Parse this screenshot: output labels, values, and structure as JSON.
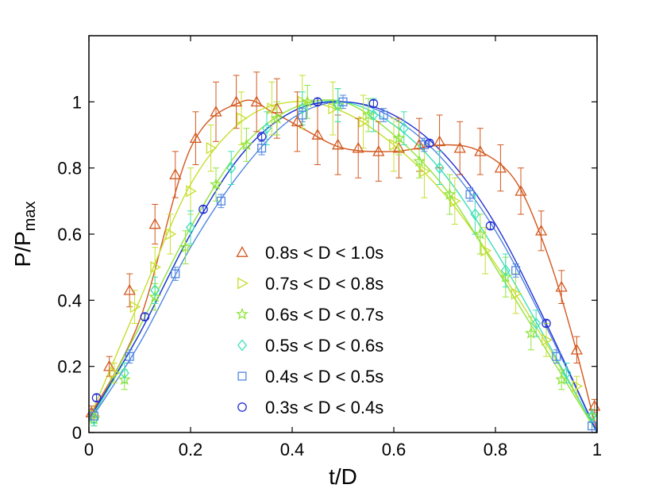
{
  "chart_data": {
    "type": "line",
    "title": "",
    "xlabel": "t/D",
    "ylabel_main": "P/P",
    "ylabel_sub": "max",
    "xlim": [
      0,
      1
    ],
    "ylim": [
      0,
      1.2
    ],
    "xticks": [
      0,
      0.2,
      0.4,
      0.6,
      0.8,
      1
    ],
    "xtick_labels": [
      "0",
      "0.2",
      "0.4",
      "0.6",
      "0.8",
      "1"
    ],
    "yticks": [
      0,
      0.2,
      0.4,
      0.6,
      0.8,
      1
    ],
    "ytick_labels": [
      "0",
      "0.2",
      "0.4",
      "0.6",
      "0.8",
      "1"
    ],
    "grid": false,
    "legend_position": "center",
    "series": [
      {
        "name": "0.8s < D < 1.0s",
        "marker": "triangle-up",
        "color": "#d2581e",
        "points": [
          [
            0.005,
            0.06,
            0.02
          ],
          [
            0.04,
            0.2,
            0.03
          ],
          [
            0.08,
            0.43,
            0.05
          ],
          [
            0.13,
            0.63,
            0.06
          ],
          [
            0.17,
            0.78,
            0.07
          ],
          [
            0.21,
            0.89,
            0.08
          ],
          [
            0.25,
            0.97,
            0.09
          ],
          [
            0.29,
            1.0,
            0.08
          ],
          [
            0.33,
            1.0,
            0.09
          ],
          [
            0.37,
            0.98,
            0.09
          ],
          [
            0.41,
            0.94,
            0.09
          ],
          [
            0.45,
            0.9,
            0.09
          ],
          [
            0.49,
            0.87,
            0.09
          ],
          [
            0.53,
            0.86,
            0.09
          ],
          [
            0.57,
            0.85,
            0.09
          ],
          [
            0.61,
            0.86,
            0.09
          ],
          [
            0.65,
            0.87,
            0.08
          ],
          [
            0.69,
            0.88,
            0.08
          ],
          [
            0.73,
            0.86,
            0.08
          ],
          [
            0.77,
            0.85,
            0.07
          ],
          [
            0.81,
            0.8,
            0.07
          ],
          [
            0.85,
            0.73,
            0.07
          ],
          [
            0.89,
            0.61,
            0.06
          ],
          [
            0.93,
            0.44,
            0.05
          ],
          [
            0.96,
            0.25,
            0.04
          ],
          [
            0.995,
            0.08,
            0.02
          ]
        ],
        "curve": [
          0.002,
          0.05,
          0.1,
          0.34,
          0.2,
          0.86,
          0.3,
          1.0,
          0.36,
          0.97,
          0.42,
          0.92,
          0.5,
          0.86,
          0.6,
          0.85,
          0.7,
          0.87,
          0.77,
          0.85,
          0.84,
          0.76,
          0.9,
          0.55,
          0.95,
          0.3,
          1.0,
          0.0
        ]
      },
      {
        "name": "0.7s < D < 0.8s",
        "marker": "triangle-right",
        "color": "#c8de2e",
        "points": [
          [
            0.01,
            0.05,
            0.02
          ],
          [
            0.05,
            0.18,
            0.03
          ],
          [
            0.09,
            0.38,
            0.05
          ],
          [
            0.13,
            0.5,
            0.06
          ],
          [
            0.16,
            0.6,
            0.06
          ],
          [
            0.2,
            0.73,
            0.07
          ],
          [
            0.24,
            0.86,
            0.07
          ],
          [
            0.3,
            0.95,
            0.08
          ],
          [
            0.36,
            0.98,
            0.08
          ],
          [
            0.42,
            1.0,
            0.08
          ],
          [
            0.48,
            0.98,
            0.08
          ],
          [
            0.54,
            0.94,
            0.08
          ],
          [
            0.6,
            0.87,
            0.08
          ],
          [
            0.66,
            0.79,
            0.08
          ],
          [
            0.72,
            0.7,
            0.07
          ],
          [
            0.78,
            0.55,
            0.07
          ],
          [
            0.84,
            0.42,
            0.06
          ],
          [
            0.9,
            0.28,
            0.05
          ],
          [
            0.96,
            0.14,
            0.03
          ]
        ],
        "curve": [
          0.0,
          0.04,
          0.1,
          0.4,
          0.2,
          0.75,
          0.3,
          0.94,
          0.4,
          1.0,
          0.5,
          0.97,
          0.6,
          0.87,
          0.7,
          0.72,
          0.8,
          0.51,
          0.9,
          0.27,
          1.0,
          0.0
        ]
      },
      {
        "name": "0.6s < D < 0.7s",
        "marker": "star",
        "color": "#8ee43a",
        "points": [
          [
            0.01,
            0.04,
            0.02
          ],
          [
            0.07,
            0.16,
            0.03
          ],
          [
            0.13,
            0.41,
            0.04
          ],
          [
            0.19,
            0.56,
            0.05
          ],
          [
            0.25,
            0.75,
            0.05
          ],
          [
            0.31,
            0.87,
            0.05
          ],
          [
            0.37,
            0.95,
            0.05
          ],
          [
            0.43,
            1.0,
            0.05
          ],
          [
            0.49,
            0.99,
            0.05
          ],
          [
            0.55,
            0.96,
            0.05
          ],
          [
            0.61,
            0.89,
            0.05
          ],
          [
            0.65,
            0.82,
            0.05
          ],
          [
            0.71,
            0.72,
            0.06
          ],
          [
            0.77,
            0.6,
            0.06
          ],
          [
            0.82,
            0.47,
            0.06
          ],
          [
            0.87,
            0.3,
            0.05
          ],
          [
            0.93,
            0.16,
            0.03
          ],
          [
            0.99,
            0.05,
            0.02
          ]
        ],
        "curve": [
          0.0,
          0.03,
          0.1,
          0.32,
          0.2,
          0.62,
          0.3,
          0.86,
          0.4,
          0.98,
          0.5,
          1.0,
          0.6,
          0.9,
          0.7,
          0.74,
          0.8,
          0.5,
          0.9,
          0.25,
          1.0,
          0.0
        ]
      },
      {
        "name": "0.5s < D < 0.6s",
        "marker": "diamond",
        "color": "#3de0b8",
        "points": [
          [
            0.01,
            0.04,
            0.02
          ],
          [
            0.07,
            0.18,
            0.03
          ],
          [
            0.13,
            0.43,
            0.04
          ],
          [
            0.2,
            0.62,
            0.05
          ],
          [
            0.28,
            0.8,
            0.05
          ],
          [
            0.35,
            0.92,
            0.05
          ],
          [
            0.42,
            0.98,
            0.05
          ],
          [
            0.49,
            0.99,
            0.05
          ],
          [
            0.56,
            0.96,
            0.05
          ],
          [
            0.62,
            0.92,
            0.05
          ],
          [
            0.69,
            0.8,
            0.05
          ],
          [
            0.76,
            0.66,
            0.06
          ],
          [
            0.82,
            0.49,
            0.05
          ],
          [
            0.88,
            0.33,
            0.04
          ],
          [
            0.94,
            0.18,
            0.03
          ],
          [
            0.99,
            0.05,
            0.02
          ]
        ],
        "curve": [
          0.0,
          0.03,
          0.1,
          0.3,
          0.2,
          0.6,
          0.3,
          0.84,
          0.4,
          0.97,
          0.5,
          1.0,
          0.6,
          0.93,
          0.7,
          0.78,
          0.8,
          0.55,
          0.9,
          0.28,
          1.0,
          0.0
        ]
      },
      {
        "name": "0.4s < D < 0.5s",
        "marker": "square",
        "color": "#4f86e0",
        "points": [
          [
            0.01,
            0.05,
            0.02
          ],
          [
            0.08,
            0.23,
            0.02
          ],
          [
            0.17,
            0.48,
            0.02
          ],
          [
            0.26,
            0.7,
            0.02
          ],
          [
            0.34,
            0.86,
            0.02
          ],
          [
            0.42,
            0.96,
            0.02
          ],
          [
            0.5,
            1.0,
            0.02
          ],
          [
            0.58,
            0.96,
            0.02
          ],
          [
            0.66,
            0.87,
            0.02
          ],
          [
            0.75,
            0.72,
            0.02
          ],
          [
            0.84,
            0.49,
            0.02
          ],
          [
            0.92,
            0.23,
            0.02
          ],
          [
            0.99,
            0.02,
            0.02
          ]
        ],
        "curve": [
          0.0,
          0.03,
          0.1,
          0.27,
          0.2,
          0.56,
          0.3,
          0.79,
          0.4,
          0.95,
          0.5,
          1.0,
          0.6,
          0.95,
          0.7,
          0.82,
          0.8,
          0.61,
          0.9,
          0.32,
          1.0,
          0.0
        ]
      },
      {
        "name": "0.3s < D < 0.4s",
        "marker": "circle",
        "color": "#2631d4",
        "points": [
          [
            0.015,
            0.105,
            0.01
          ],
          [
            0.11,
            0.35,
            0.01
          ],
          [
            0.225,
            0.675,
            0.01
          ],
          [
            0.34,
            0.895,
            0.01
          ],
          [
            0.45,
            1.0,
            0.01
          ],
          [
            0.56,
            0.995,
            0.01
          ],
          [
            0.67,
            0.875,
            0.01
          ],
          [
            0.79,
            0.625,
            0.01
          ],
          [
            0.9,
            0.33,
            0.01
          ]
        ],
        "curve": [
          0.0,
          0.04,
          0.1,
          0.3,
          0.2,
          0.6,
          0.3,
          0.84,
          0.4,
          0.97,
          0.5,
          1.0,
          0.6,
          0.96,
          0.7,
          0.84,
          0.8,
          0.63,
          0.9,
          0.33,
          1.0,
          0.0
        ]
      }
    ]
  }
}
